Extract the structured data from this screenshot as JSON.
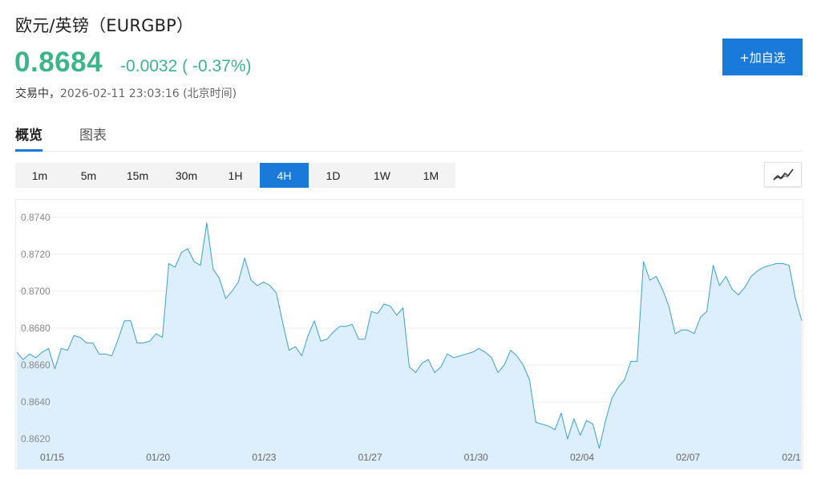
{
  "header": {
    "title": "欧元/英镑（EURGBP）",
    "price": "0.8684",
    "change": "-0.0032 ( -0.37%)",
    "status": "交易中，",
    "timestamp": "2026-02-11 23:03:16 (北京时间)",
    "watch_button": "+加自选"
  },
  "colors": {
    "price": "#3cb58b",
    "accent": "#1a7ad9",
    "line": "#3a9fd6",
    "fill": "#ddeefc"
  },
  "tabs": [
    {
      "label": "概览",
      "active": true
    },
    {
      "label": "图表",
      "active": false
    }
  ],
  "periods": [
    {
      "label": "1m",
      "active": false
    },
    {
      "label": "5m",
      "active": false
    },
    {
      "label": "15m",
      "active": false
    },
    {
      "label": "30m",
      "active": false
    },
    {
      "label": "1H",
      "active": false
    },
    {
      "label": "4H",
      "active": true
    },
    {
      "label": "1D",
      "active": false
    },
    {
      "label": "1W",
      "active": false
    },
    {
      "label": "1M",
      "active": false
    }
  ],
  "chart_type_icon": "line-chart-icon",
  "chart_data": {
    "type": "area",
    "title": "",
    "xlabel": "",
    "ylabel": "",
    "ylim": [
      0.8604,
      0.8746
    ],
    "yticks": [
      "0.8620",
      "0.8640",
      "0.8660",
      "0.8680",
      "0.8700",
      "0.8720",
      "0.8740"
    ],
    "xticks": [
      "01/15",
      "01/20",
      "01/23",
      "01/27",
      "01/30",
      "02/04",
      "02/07",
      "02/1"
    ],
    "grid": true,
    "values": [
      0.8667,
      0.8663,
      0.8666,
      0.8664,
      0.8667,
      0.8669,
      0.8658,
      0.8669,
      0.8668,
      0.8676,
      0.8675,
      0.8672,
      0.8672,
      0.8666,
      0.8666,
      0.8665,
      0.8674,
      0.8684,
      0.8684,
      0.8672,
      0.8672,
      0.8673,
      0.8677,
      0.8675,
      0.8715,
      0.8713,
      0.8721,
      0.8723,
      0.8716,
      0.8714,
      0.8737,
      0.8712,
      0.8707,
      0.8696,
      0.87,
      0.8705,
      0.8718,
      0.8706,
      0.8703,
      0.8705,
      0.8703,
      0.8699,
      0.8683,
      0.8668,
      0.867,
      0.8665,
      0.8676,
      0.8684,
      0.8673,
      0.8674,
      0.8678,
      0.8681,
      0.8681,
      0.8682,
      0.8674,
      0.8674,
      0.8689,
      0.8688,
      0.8693,
      0.8692,
      0.8687,
      0.8691,
      0.8659,
      0.8656,
      0.8661,
      0.8663,
      0.8656,
      0.8659,
      0.8666,
      0.8664,
      0.8665,
      0.8666,
      0.8667,
      0.8669,
      0.8667,
      0.8664,
      0.8656,
      0.866,
      0.8668,
      0.8665,
      0.866,
      0.8652,
      0.8629,
      0.8628,
      0.8627,
      0.8625,
      0.8634,
      0.862,
      0.8631,
      0.8622,
      0.863,
      0.8628,
      0.8615,
      0.863,
      0.8642,
      0.8648,
      0.8652,
      0.8662,
      0.8662,
      0.8716,
      0.8706,
      0.8708,
      0.8701,
      0.8692,
      0.8677,
      0.8679,
      0.8679,
      0.8677,
      0.8686,
      0.8689,
      0.8714,
      0.8703,
      0.8708,
      0.8701,
      0.8698,
      0.8702,
      0.8708,
      0.8711,
      0.8713,
      0.8714,
      0.8715,
      0.8715,
      0.8714,
      0.8696,
      0.8684
    ]
  }
}
